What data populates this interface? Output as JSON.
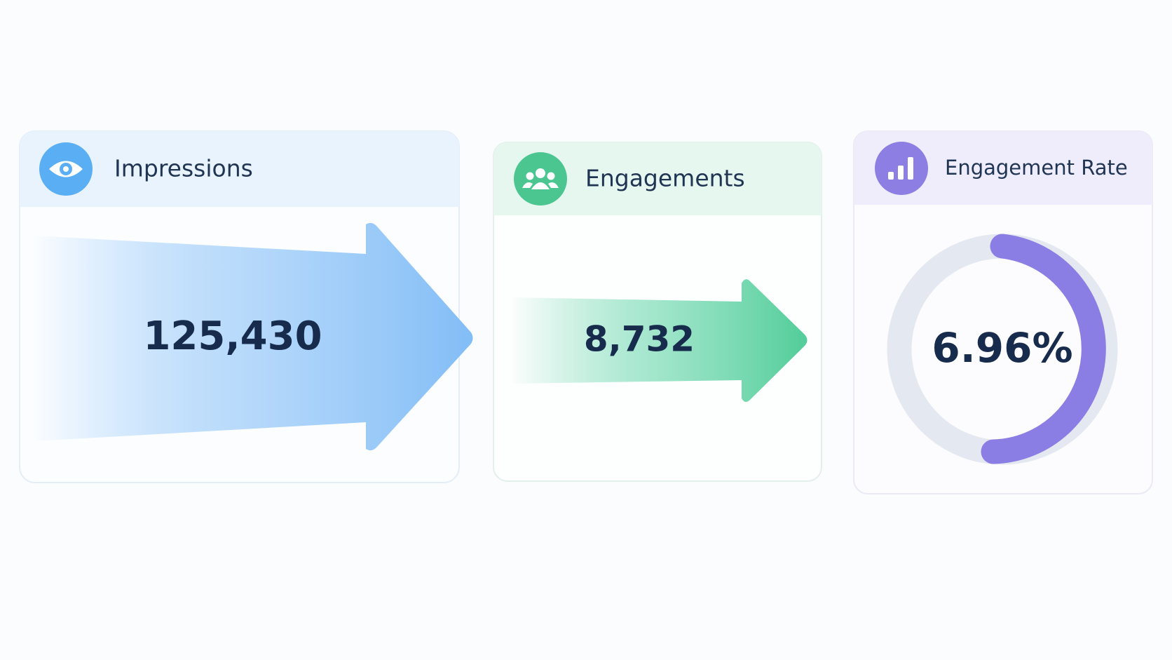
{
  "cards": [
    {
      "title": "Impressions",
      "value": "125,430"
    },
    {
      "title": "Engagements",
      "value": "8,732"
    },
    {
      "title": "Engagement Rate",
      "value": "6.96%"
    }
  ]
}
